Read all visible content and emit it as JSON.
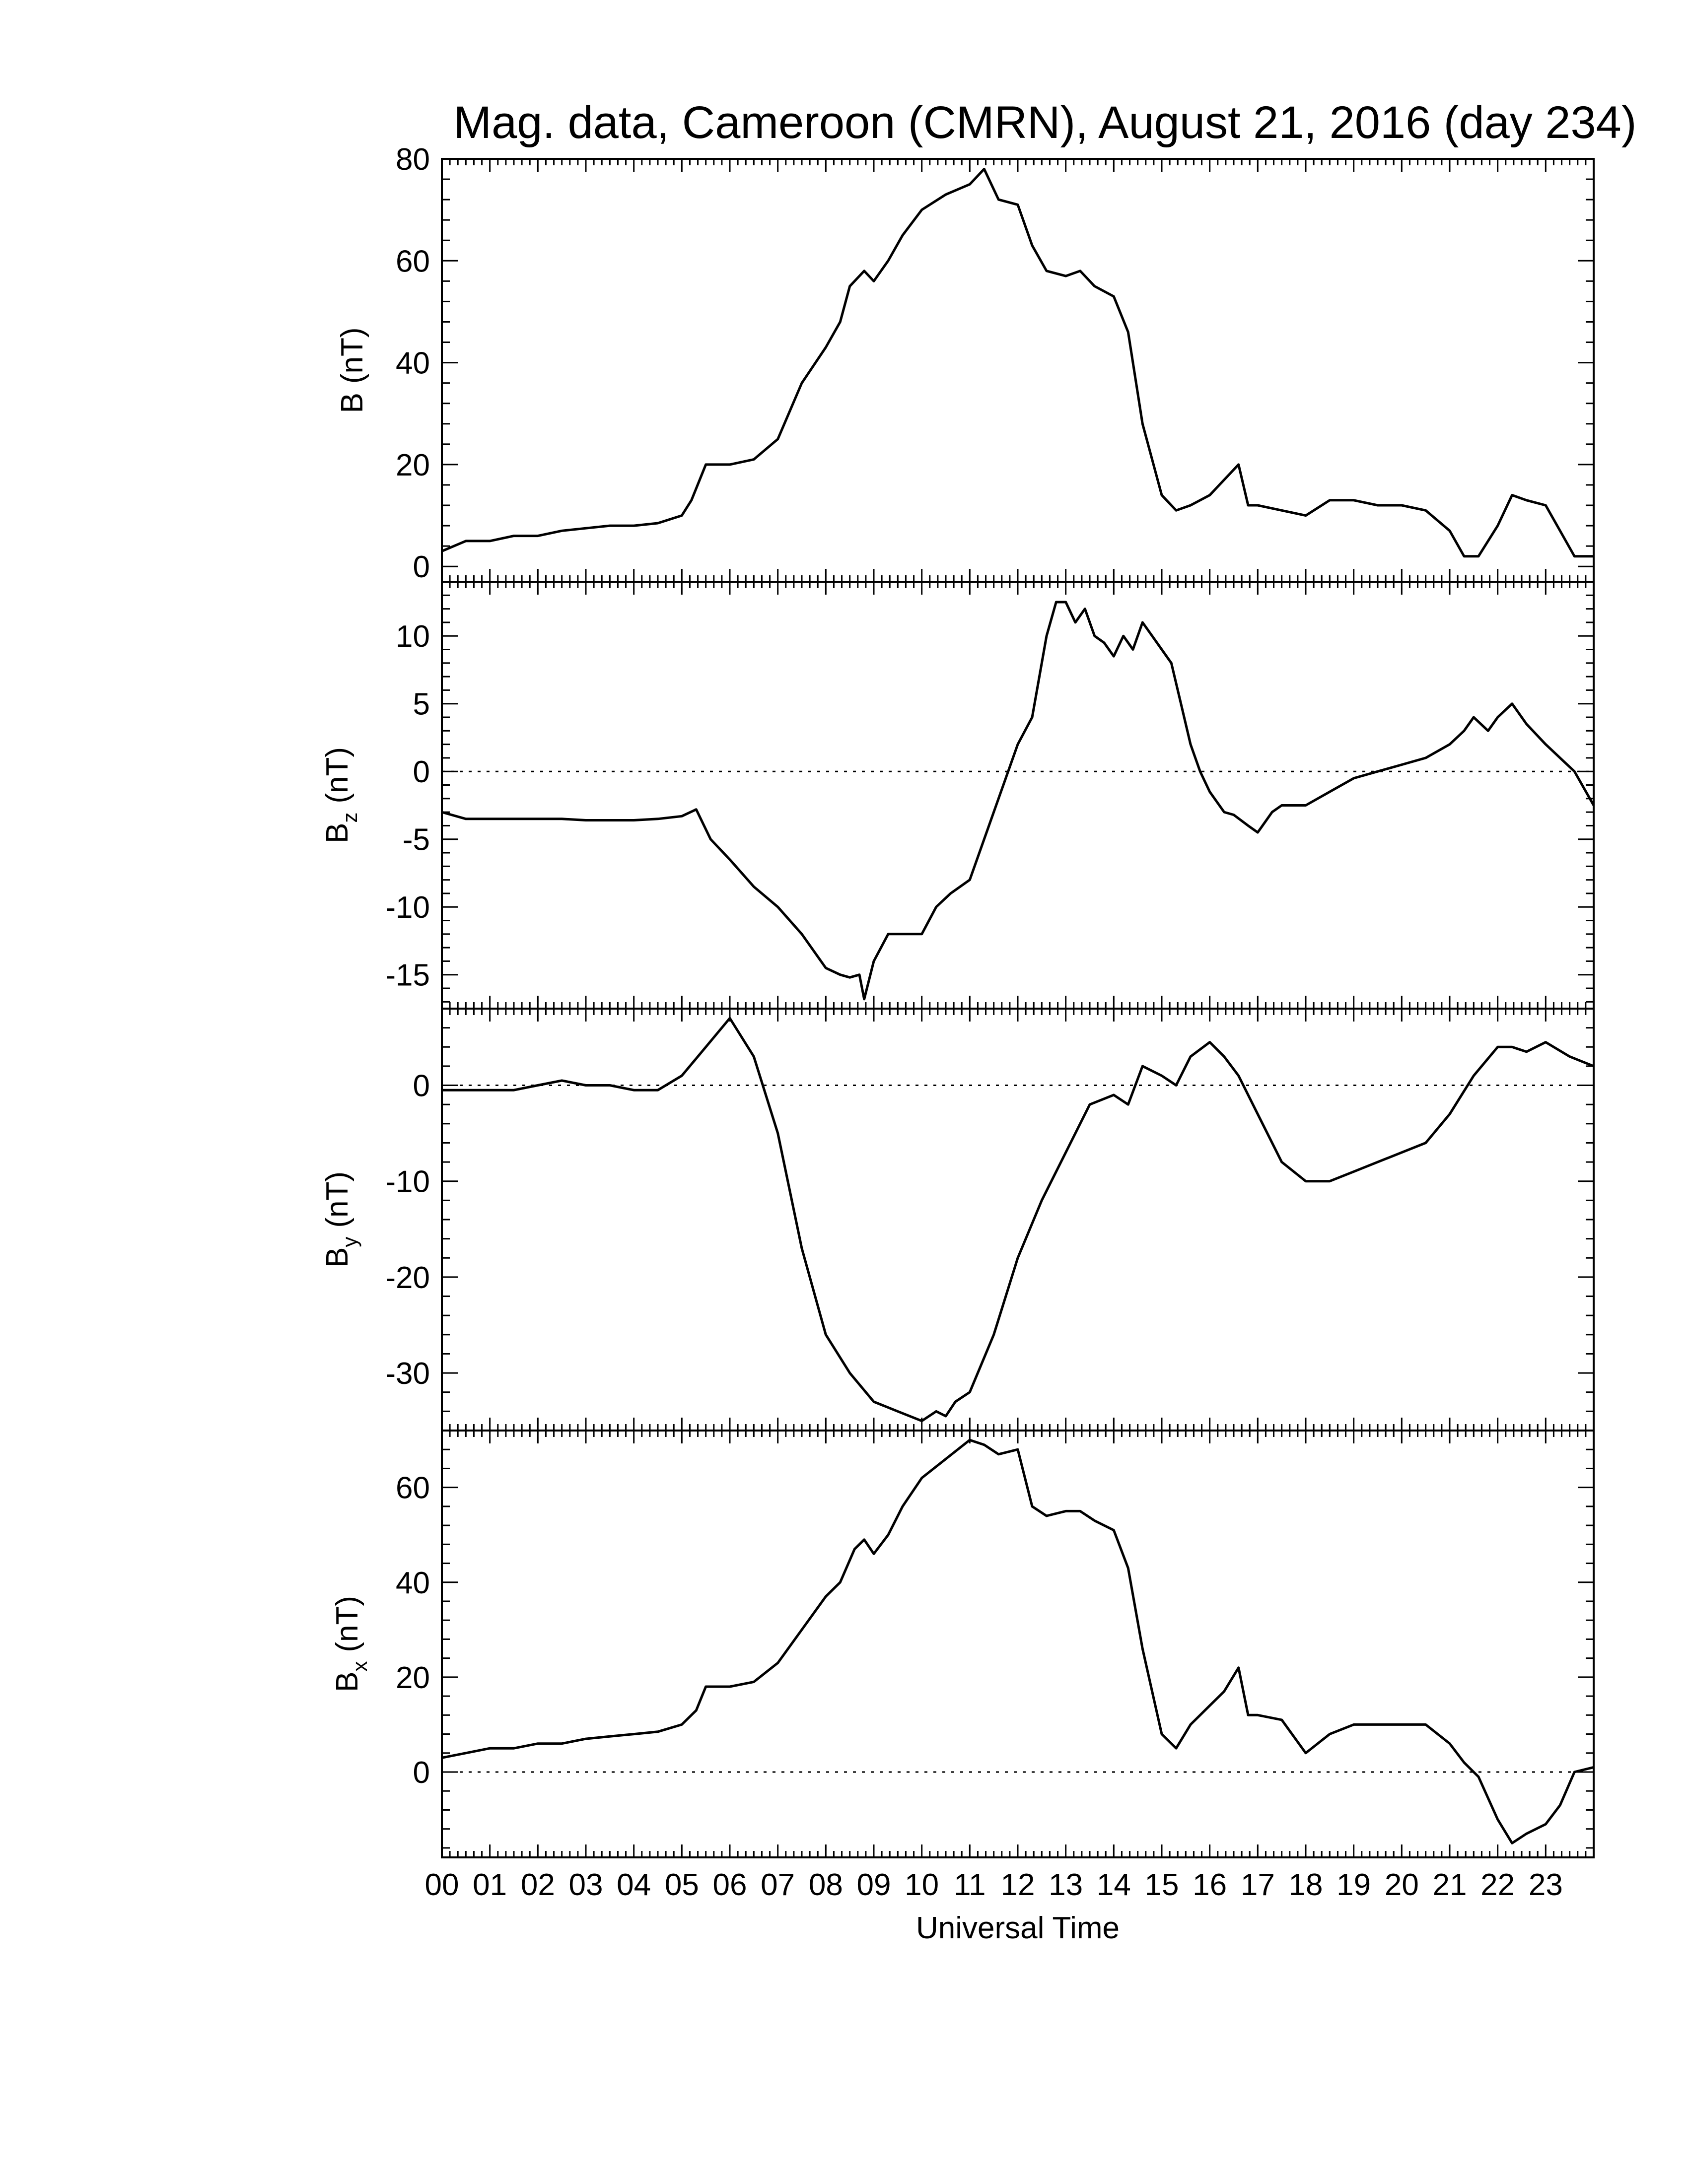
{
  "title": "Mag. data, Cameroon (CMRN), August 21, 2016 (day 234)",
  "chart_data": {
    "type": "line",
    "title": "Mag. data, Cameroon (CMRN), August 21, 2016 (day 234)",
    "xlabel": "Universal Time",
    "xlim": [
      0,
      24
    ],
    "x_tick_labels": [
      "00",
      "01",
      "02",
      "03",
      "04",
      "05",
      "06",
      "07",
      "08",
      "09",
      "10",
      "11",
      "12",
      "13",
      "14",
      "15",
      "16",
      "17",
      "18",
      "19",
      "20",
      "21",
      "22",
      "23"
    ],
    "grid": false,
    "legend": "none",
    "panels": [
      {
        "id": "B",
        "ylabel": "B (nT)",
        "ylabel_main": "B",
        "ylabel_sub": "",
        "ylabel_unit": "(nT)",
        "ylim": [
          -3,
          80
        ],
        "yticks": [
          0,
          20,
          40,
          60,
          80
        ],
        "zero_line": false,
        "series": [
          {
            "x": [
              0,
              0.5,
              1,
              1.5,
              2,
              2.5,
              3,
              3.5,
              4,
              4.5,
              5,
              5.2,
              5.5,
              6,
              6.5,
              7,
              7.5,
              8,
              8.3,
              8.5,
              8.8,
              9,
              9.3,
              9.6,
              10,
              10.5,
              11,
              11.3,
              11.6,
              12,
              12.3,
              12.6,
              13,
              13.3,
              13.6,
              14,
              14.3,
              14.6,
              15,
              15.3,
              15.6,
              16,
              16.3,
              16.6,
              16.8,
              17,
              17.5,
              18,
              18.5,
              19,
              19.5,
              20,
              20.5,
              21,
              21.3,
              21.6,
              22,
              22.3,
              22.6,
              23,
              23.3,
              23.6,
              24
            ],
            "y": [
              3,
              5,
              5,
              6,
              6,
              7,
              7.5,
              8,
              8,
              8.5,
              10,
              13,
              20,
              20,
              21,
              25,
              36,
              43,
              48,
              55,
              58,
              56,
              60,
              65,
              70,
              73,
              75,
              78,
              72,
              71,
              63,
              58,
              57,
              58,
              55,
              53,
              46,
              28,
              14,
              11,
              12,
              14,
              17,
              20,
              12,
              12,
              11,
              10,
              13,
              13,
              12,
              12,
              11,
              7,
              2,
              2,
              8,
              14,
              13,
              12,
              7,
              2,
              2
            ]
          }
        ]
      },
      {
        "id": "Bz",
        "ylabel": "Bz (nT)",
        "ylabel_main": "B",
        "ylabel_sub": "z",
        "ylabel_unit": "(nT)",
        "ylim": [
          -17.5,
          14
        ],
        "yticks": [
          -15,
          -10,
          -5,
          0,
          5,
          10
        ],
        "zero_line": true,
        "series": [
          {
            "x": [
              0,
              0.5,
              1,
              1.5,
              2,
              2.5,
              3,
              3.5,
              4,
              4.5,
              5,
              5.3,
              5.6,
              6,
              6.5,
              7,
              7.5,
              7.8,
              8,
              8.3,
              8.5,
              8.7,
              8.8,
              9,
              9.3,
              9.6,
              10,
              10.3,
              10.6,
              11,
              11.3,
              11.6,
              12,
              12.3,
              12.6,
              12.8,
              13,
              13.2,
              13.4,
              13.6,
              13.8,
              14,
              14.2,
              14.4,
              14.6,
              14.8,
              15,
              15.2,
              15.4,
              15.6,
              15.8,
              16,
              16.3,
              16.5,
              16.8,
              17,
              17.3,
              17.5,
              17.8,
              18,
              18.5,
              19,
              19.5,
              20,
              20.5,
              21,
              21.3,
              21.5,
              21.8,
              22,
              22.3,
              22.6,
              23,
              23.3,
              23.6,
              24
            ],
            "y": [
              -3,
              -3.5,
              -3.5,
              -3.5,
              -3.5,
              -3.5,
              -3.6,
              -3.6,
              -3.6,
              -3.5,
              -3.3,
              -2.8,
              -5,
              -6.5,
              -8.5,
              -10,
              -12,
              -13.5,
              -14.5,
              -15,
              -15.2,
              -15,
              -16.8,
              -14,
              -12,
              -12,
              -12,
              -10,
              -9,
              -8,
              -5,
              -2,
              2,
              4,
              10,
              12.5,
              12.5,
              11,
              12,
              10,
              9.5,
              8.5,
              10,
              9,
              11,
              10,
              9,
              8,
              5,
              2,
              0,
              -1.5,
              -3,
              -3.2,
              -4,
              -4.5,
              -3,
              -2.5,
              -2.5,
              -2.5,
              -1.5,
              -0.5,
              0,
              0.5,
              1,
              2,
              3,
              4,
              3,
              4,
              5,
              3.5,
              2,
              1,
              0,
              -2.5
            ]
          }
        ]
      },
      {
        "id": "By",
        "ylabel": "By (nT)",
        "ylabel_main": "B",
        "ylabel_sub": "y",
        "ylabel_unit": "(nT)",
        "ylim": [
          -36,
          8
        ],
        "yticks": [
          -30,
          -20,
          -10,
          0
        ],
        "zero_line": true,
        "series": [
          {
            "x": [
              0,
              0.5,
              1,
              1.5,
              2,
              2.5,
              3,
              3.5,
              4,
              4.5,
              5,
              5.5,
              6,
              6.5,
              7,
              7.5,
              8,
              8.5,
              9,
              9.5,
              10,
              10.3,
              10.5,
              10.7,
              11,
              11.5,
              12,
              12.5,
              13,
              13.5,
              14,
              14.3,
              14.6,
              15,
              15.3,
              15.6,
              16,
              16.3,
              16.6,
              17,
              17.5,
              18,
              18.5,
              19,
              19.5,
              20,
              20.5,
              21,
              21.5,
              22,
              22.3,
              22.6,
              23,
              23.5,
              24
            ],
            "y": [
              -0.5,
              -0.5,
              -0.5,
              -0.5,
              0,
              0.5,
              0,
              0,
              -0.5,
              -0.5,
              1,
              4,
              7,
              3,
              -5,
              -17,
              -26,
              -30,
              -33,
              -34,
              -35,
              -34,
              -34.5,
              -33,
              -32,
              -26,
              -18,
              -12,
              -7,
              -2,
              -1,
              -2,
              2,
              1,
              0,
              3,
              4.5,
              3,
              1,
              -3,
              -8,
              -10,
              -10,
              -9,
              -8,
              -7,
              -6,
              -3,
              1,
              4,
              4,
              3.5,
              4.5,
              3,
              2
            ]
          }
        ]
      },
      {
        "id": "Bx",
        "ylabel": "Bx (nT)",
        "ylabel_main": "B",
        "ylabel_sub": "x",
        "ylabel_unit": "(nT)",
        "ylim": [
          -18,
          72
        ],
        "yticks": [
          0,
          20,
          40,
          60
        ],
        "zero_line": true,
        "series": [
          {
            "x": [
              0,
              0.5,
              1,
              1.5,
              2,
              2.5,
              3,
              3.5,
              4,
              4.5,
              5,
              5.3,
              5.5,
              6,
              6.5,
              7,
              7.5,
              8,
              8.3,
              8.6,
              8.8,
              9,
              9.3,
              9.6,
              10,
              10.5,
              11,
              11.3,
              11.6,
              12,
              12.3,
              12.6,
              13,
              13.3,
              13.6,
              14,
              14.3,
              14.6,
              15,
              15.3,
              15.6,
              16,
              16.3,
              16.6,
              16.8,
              17,
              17.5,
              18,
              18.5,
              19,
              19.5,
              20,
              20.5,
              21,
              21.3,
              21.6,
              22,
              22.3,
              22.6,
              23,
              23.3,
              23.6,
              24
            ],
            "y": [
              3,
              4,
              5,
              5,
              6,
              6,
              7,
              7.5,
              8,
              8.5,
              10,
              13,
              18,
              18,
              19,
              23,
              30,
              37,
              40,
              47,
              49,
              46,
              50,
              56,
              62,
              66,
              70,
              69,
              67,
              68,
              56,
              54,
              55,
              55,
              53,
              51,
              43,
              26,
              8,
              5,
              10,
              14,
              17,
              22,
              12,
              12,
              11,
              4,
              8,
              10,
              10,
              10,
              10,
              6,
              2,
              -1,
              -10,
              -15,
              -13,
              -11,
              -7,
              0,
              1
            ]
          }
        ]
      }
    ]
  }
}
